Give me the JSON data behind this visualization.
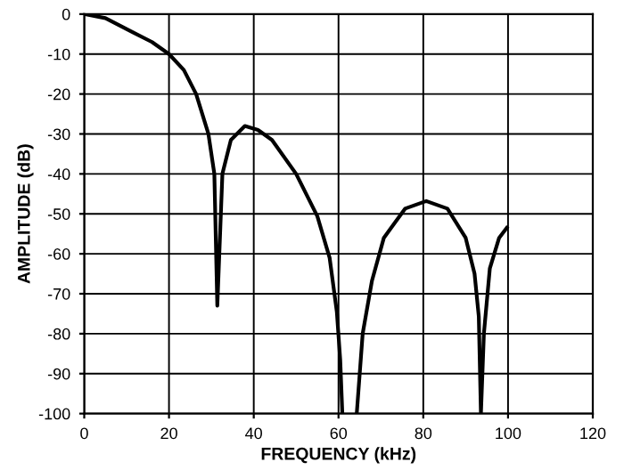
{
  "chart_data": {
    "type": "line",
    "xlabel": "FREQUENCY (kHz)",
    "ylabel": "AMPLITUDE (dB)",
    "xlim": [
      0,
      120
    ],
    "ylim": [
      -100,
      0
    ],
    "xticks": [
      0,
      20,
      40,
      60,
      80,
      100,
      120
    ],
    "yticks": [
      0,
      -10,
      -20,
      -30,
      -40,
      -50,
      -60,
      -70,
      -80,
      -90,
      -100
    ],
    "grid": true,
    "series": [
      {
        "color": "#000000",
        "x": [
          0,
          5,
          11.4,
          16,
          20,
          23.5,
          26.4,
          29.3,
          30.7,
          31.4,
          32.6,
          34.6,
          37.9,
          41,
          44.3,
          50,
          55,
          57.9,
          59.6,
          60.4,
          60.9,
          62.5,
          64.3,
          65.7,
          67.9,
          70.7,
          75.7,
          80.7,
          85.7,
          90,
          92.1,
          93.1,
          93.6,
          94.3,
          95.7,
          97.9,
          99.7
        ],
        "values": [
          0,
          -1,
          -4.5,
          -7,
          -10,
          -14,
          -20,
          -30,
          -40,
          -73,
          -40,
          -31.5,
          -28,
          -29,
          -31.5,
          -40,
          -50.6,
          -61,
          -74.5,
          -86.5,
          -100,
          null,
          -100,
          -80,
          -66.7,
          -56,
          -48.7,
          -46.8,
          -48.7,
          -56,
          -65,
          -75.7,
          -100,
          -80,
          -63.7,
          -56,
          -53.5
        ]
      }
    ]
  }
}
